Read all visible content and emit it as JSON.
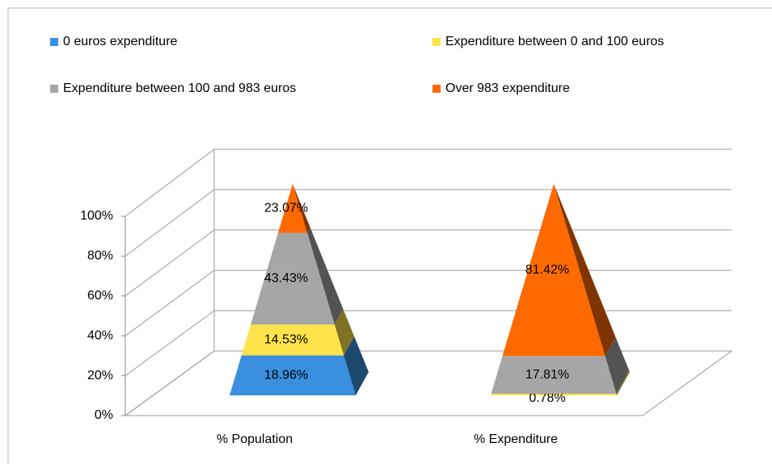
{
  "chart_data": {
    "type": "pyramid",
    "stacked": "percent",
    "categories": [
      "% Population",
      "% Expenditure"
    ],
    "series": [
      {
        "name": "0 euros expenditure",
        "color": "#3a8fde",
        "values": [
          18.96,
          0
        ],
        "value_labels": [
          "18.96%",
          null
        ]
      },
      {
        "name": "Expenditure between 0 and 100 euros",
        "color": "#ffe34a",
        "values": [
          14.53,
          0.78
        ],
        "value_labels": [
          "14.53%",
          "0.78%"
        ]
      },
      {
        "name": "Expenditure between 100 and 983 euros",
        "color": "#a6a6a6",
        "values": [
          43.43,
          17.81
        ],
        "value_labels": [
          "43.43%",
          "17.81%"
        ]
      },
      {
        "name": "Over 983 expenditure",
        "color": "#ff6a00",
        "values": [
          23.07,
          81.42
        ],
        "value_labels": [
          "23.07%",
          "81.42%"
        ]
      }
    ],
    "ylim": [
      0,
      100
    ],
    "yticks": [
      {
        "value": 0,
        "label": "0%"
      },
      {
        "value": 20,
        "label": "20%"
      },
      {
        "value": 40,
        "label": "40%"
      },
      {
        "value": 60,
        "label": "60%"
      },
      {
        "value": 80,
        "label": "80%"
      },
      {
        "value": 100,
        "label": "100%"
      }
    ],
    "grid": true,
    "legend": "top"
  }
}
